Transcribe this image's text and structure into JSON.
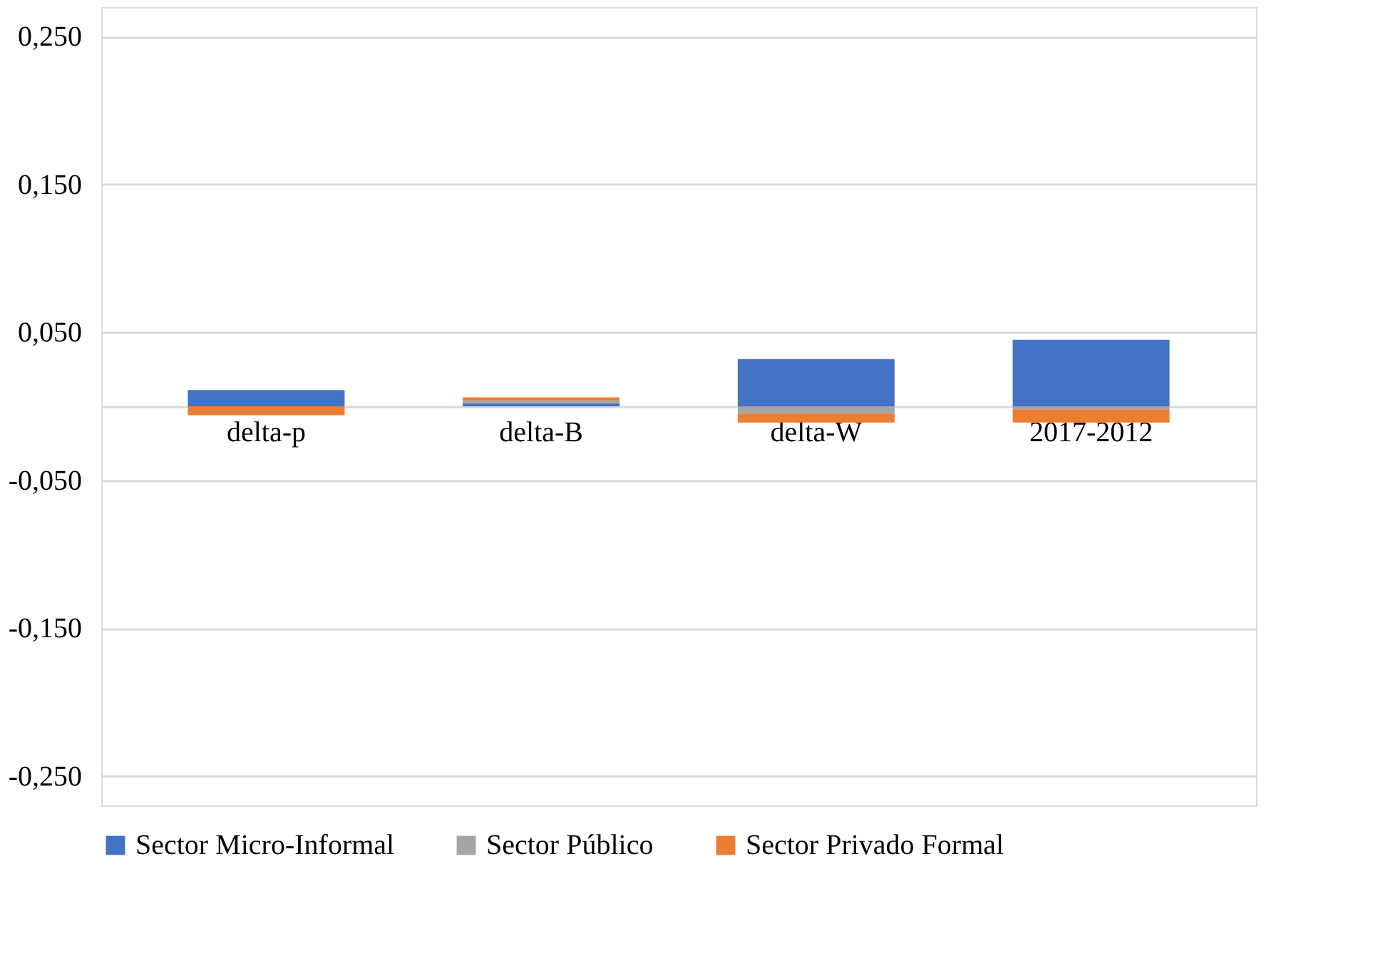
{
  "chart_data": {
    "type": "bar",
    "stacked": true,
    "categories": [
      "delta-p",
      "delta-B",
      "delta-W",
      "2017-2012"
    ],
    "series": [
      {
        "name": "Sector Micro-Informal",
        "color": "#4472c4",
        "values": [
          0.011,
          0.002,
          0.032,
          0.045
        ]
      },
      {
        "name": "Sector Público",
        "color": "#a5a5a5",
        "values": [
          null,
          0.002,
          -0.005,
          -0.002
        ]
      },
      {
        "name": "Sector Privado Formal",
        "color": "#ed7d31",
        "values": [
          -0.006,
          0.002,
          -0.006,
          -0.009
        ]
      }
    ],
    "ylim": [
      -0.27,
      0.27
    ],
    "yticks": [
      {
        "value": -0.25,
        "label": "-0,250"
      },
      {
        "value": -0.15,
        "label": "-0,150"
      },
      {
        "value": -0.05,
        "label": "-0,050"
      },
      {
        "value": 0,
        "label": null
      },
      {
        "value": 0.05,
        "label": "0,050"
      },
      {
        "value": 0.15,
        "label": "0,150"
      },
      {
        "value": 0.25,
        "label": "0,250"
      }
    ],
    "grid": "y",
    "legend": "bottom"
  }
}
